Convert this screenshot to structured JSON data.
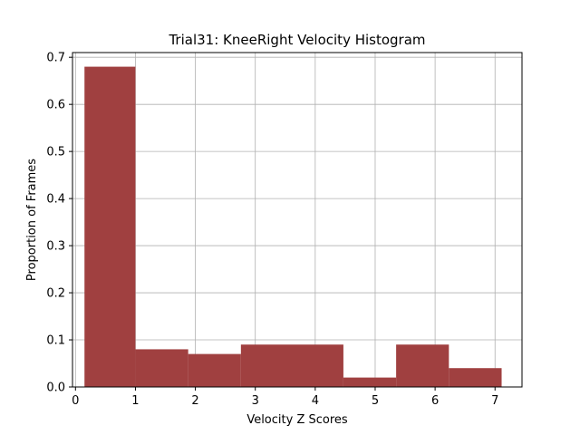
{
  "chart_data": {
    "type": "bar",
    "title": "Trial31: KneeRight Velocity Histogram",
    "xlabel": "Velocity Z Scores",
    "ylabel": "Proportion of Frames",
    "xlim": [
      -0.05,
      7.45
    ],
    "ylim": [
      0,
      0.71
    ],
    "xticks": [
      0,
      1,
      2,
      3,
      4,
      5,
      6,
      7
    ],
    "xtick_labels": [
      "0",
      "1",
      "2",
      "3",
      "4",
      "5",
      "6",
      "7"
    ],
    "yticks": [
      0.0,
      0.1,
      0.2,
      0.3,
      0.4,
      0.5,
      0.6,
      0.7
    ],
    "ytick_labels": [
      "0.0",
      "0.1",
      "0.2",
      "0.3",
      "0.4",
      "0.5",
      "0.6",
      "0.7"
    ],
    "grid": true,
    "bar_color": "#a04040",
    "bins": [
      {
        "x0": 0.15,
        "x1": 1.0,
        "value": 0.68
      },
      {
        "x0": 1.0,
        "x1": 1.88,
        "value": 0.08
      },
      {
        "x0": 1.88,
        "x1": 2.76,
        "value": 0.07
      },
      {
        "x0": 2.76,
        "x1": 4.47,
        "value": 0.09
      },
      {
        "x0": 4.47,
        "x1": 5.35,
        "value": 0.02
      },
      {
        "x0": 5.35,
        "x1": 6.23,
        "value": 0.09
      },
      {
        "x0": 6.23,
        "x1": 7.11,
        "value": 0.04
      }
    ]
  }
}
